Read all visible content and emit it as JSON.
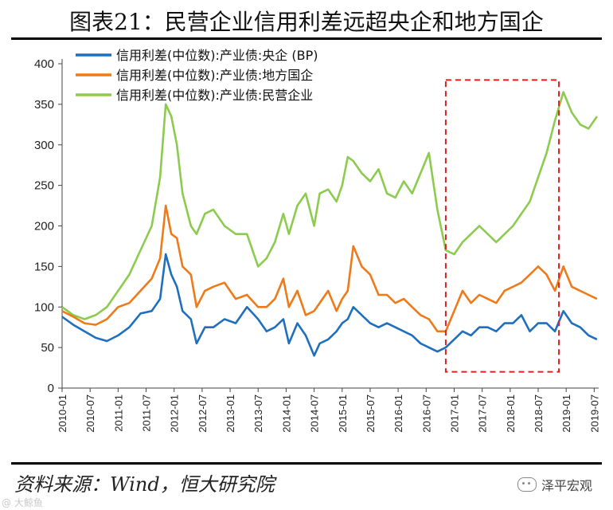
{
  "page": {
    "title": "图表21：民营企业信用利差远超央企和地方国企",
    "source": "资料来源：Wind，恒大研究院",
    "watermark_right": "泽平宏观",
    "watermark_left": "@ 大鲸鱼"
  },
  "chart_data": {
    "type": "line",
    "title": "图表21：民营企业信用利差远超央企和地方国企",
    "xlabel": "",
    "ylabel": "",
    "ylim": [
      0,
      400
    ],
    "yticks": [
      0,
      50,
      100,
      150,
      200,
      250,
      300,
      350,
      400
    ],
    "x_start": 2010.0,
    "x_end": 2019.58,
    "xticks": [
      "2010-01",
      "2010-07",
      "2011-01",
      "2011-07",
      "2012-01",
      "2012-07",
      "2013-01",
      "2013-07",
      "2014-01",
      "2014-07",
      "2015-01",
      "2015-07",
      "2016-01",
      "2016-07",
      "2017-01",
      "2017-07",
      "2018-01",
      "2018-07",
      "2019-01",
      "2019-07"
    ],
    "legend_position": "top-left",
    "highlight_box": {
      "x_range": [
        2016.85,
        2018.87
      ],
      "y_range": [
        20,
        380
      ],
      "color": "#e02020",
      "style": "dashed"
    },
    "series": [
      {
        "name": "信用利差(中位数):产业债:央企 (BP)",
        "color": "#1f6fbf",
        "x": [
          2010.0,
          2010.2,
          2010.4,
          2010.6,
          2010.8,
          2011.0,
          2011.2,
          2011.4,
          2011.6,
          2011.75,
          2011.85,
          2011.95,
          2012.05,
          2012.15,
          2012.3,
          2012.4,
          2012.55,
          2012.7,
          2012.9,
          2013.1,
          2013.3,
          2013.5,
          2013.65,
          2013.8,
          2013.95,
          2014.05,
          2014.2,
          2014.35,
          2014.5,
          2014.6,
          2014.75,
          2014.9,
          2015.0,
          2015.1,
          2015.2,
          2015.35,
          2015.5,
          2015.65,
          2015.8,
          2015.95,
          2016.1,
          2016.25,
          2016.4,
          2016.55,
          2016.7,
          2016.85,
          2017.0,
          2017.15,
          2017.3,
          2017.45,
          2017.6,
          2017.75,
          2017.9,
          2018.05,
          2018.2,
          2018.35,
          2018.5,
          2018.65,
          2018.8,
          2018.95,
          2019.1,
          2019.25,
          2019.4,
          2019.55
        ],
        "values": [
          88,
          78,
          70,
          62,
          58,
          65,
          75,
          92,
          95,
          110,
          165,
          140,
          125,
          95,
          85,
          55,
          75,
          75,
          85,
          80,
          100,
          85,
          70,
          75,
          85,
          55,
          80,
          65,
          40,
          55,
          60,
          70,
          80,
          85,
          100,
          90,
          80,
          75,
          80,
          75,
          70,
          65,
          55,
          50,
          45,
          50,
          60,
          70,
          65,
          75,
          75,
          70,
          80,
          80,
          90,
          70,
          80,
          80,
          70,
          95,
          80,
          75,
          65,
          60
        ]
      },
      {
        "name": "信用利差(中位数):产业债:地方国企",
        "color": "#ee7a1a",
        "x": [
          2010.0,
          2010.2,
          2010.4,
          2010.6,
          2010.8,
          2011.0,
          2011.2,
          2011.4,
          2011.6,
          2011.75,
          2011.85,
          2011.95,
          2012.05,
          2012.15,
          2012.3,
          2012.4,
          2012.55,
          2012.7,
          2012.9,
          2013.1,
          2013.3,
          2013.5,
          2013.65,
          2013.8,
          2013.95,
          2014.05,
          2014.2,
          2014.35,
          2014.5,
          2014.6,
          2014.75,
          2014.9,
          2015.0,
          2015.1,
          2015.2,
          2015.35,
          2015.5,
          2015.65,
          2015.8,
          2015.95,
          2016.1,
          2016.25,
          2016.4,
          2016.55,
          2016.7,
          2016.85,
          2017.0,
          2017.15,
          2017.3,
          2017.45,
          2017.6,
          2017.75,
          2017.9,
          2018.05,
          2018.2,
          2018.35,
          2018.5,
          2018.65,
          2018.8,
          2018.95,
          2019.1,
          2019.25,
          2019.4,
          2019.55
        ],
        "values": [
          95,
          88,
          80,
          78,
          85,
          100,
          105,
          120,
          135,
          160,
          225,
          190,
          185,
          150,
          140,
          100,
          120,
          125,
          130,
          110,
          115,
          100,
          100,
          110,
          135,
          100,
          120,
          90,
          95,
          105,
          120,
          95,
          110,
          120,
          175,
          150,
          140,
          115,
          115,
          105,
          110,
          100,
          90,
          85,
          70,
          70,
          95,
          120,
          105,
          115,
          110,
          105,
          120,
          125,
          130,
          140,
          150,
          140,
          120,
          150,
          125,
          120,
          115,
          110
        ]
      },
      {
        "name": "信用利差(中位数):产业债:民营企业",
        "color": "#8dcb4e",
        "x": [
          2010.0,
          2010.2,
          2010.4,
          2010.6,
          2010.8,
          2011.0,
          2011.2,
          2011.4,
          2011.6,
          2011.75,
          2011.85,
          2011.95,
          2012.05,
          2012.15,
          2012.3,
          2012.4,
          2012.55,
          2012.7,
          2012.9,
          2013.1,
          2013.3,
          2013.5,
          2013.65,
          2013.8,
          2013.95,
          2014.05,
          2014.2,
          2014.35,
          2014.5,
          2014.6,
          2014.75,
          2014.9,
          2015.0,
          2015.1,
          2015.2,
          2015.35,
          2015.5,
          2015.65,
          2015.8,
          2015.95,
          2016.1,
          2016.25,
          2016.4,
          2016.55,
          2016.7,
          2016.85,
          2017.0,
          2017.15,
          2017.3,
          2017.45,
          2017.6,
          2017.75,
          2017.9,
          2018.05,
          2018.2,
          2018.35,
          2018.5,
          2018.65,
          2018.8,
          2018.95,
          2019.1,
          2019.25,
          2019.4,
          2019.55
        ],
        "values": [
          100,
          90,
          85,
          90,
          100,
          120,
          140,
          170,
          200,
          260,
          350,
          335,
          300,
          240,
          200,
          190,
          215,
          220,
          200,
          190,
          190,
          150,
          160,
          180,
          215,
          190,
          225,
          240,
          200,
          240,
          245,
          230,
          250,
          285,
          280,
          265,
          255,
          270,
          240,
          235,
          255,
          240,
          265,
          290,
          220,
          170,
          165,
          180,
          190,
          200,
          190,
          180,
          190,
          200,
          215,
          230,
          260,
          290,
          330,
          365,
          340,
          325,
          320,
          335
        ]
      }
    ]
  }
}
